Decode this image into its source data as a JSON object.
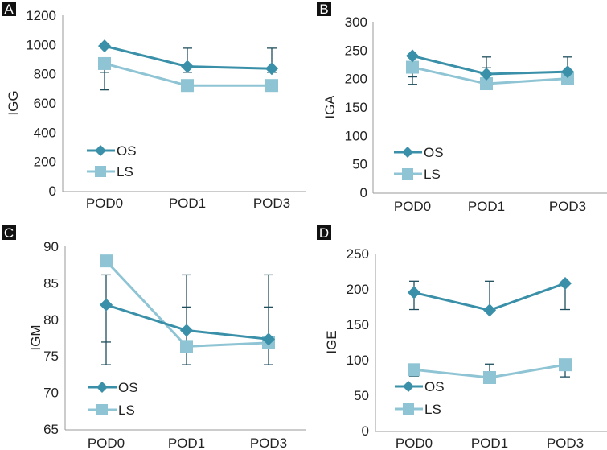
{
  "colors": {
    "OS": "#3a90a8",
    "LS": "#8ec4d4",
    "errorbar": "#1f4f5e",
    "axis": "#9a9a9a"
  },
  "chart_data": [
    {
      "panel": "A",
      "type": "line",
      "categories": [
        "POD0",
        "POD1",
        "POD3"
      ],
      "ylabel": "IGG",
      "xlabel": "",
      "ylim": [
        0,
        1200
      ],
      "yticks": [
        0,
        200,
        400,
        600,
        800,
        1000,
        1200
      ],
      "legend": "bottom-left",
      "series": [
        {
          "name": "OS",
          "marker": "diamond",
          "values": [
            990,
            850,
            835
          ]
        },
        {
          "name": "LS",
          "marker": "square",
          "values": [
            870,
            720,
            720
          ]
        }
      ],
      "error_bars": [
        {
          "category": "POD0",
          "low": 690,
          "high": 870,
          "caps": [
            690,
            810
          ]
        },
        {
          "category": "POD1",
          "low": 810,
          "high": 975,
          "caps": [
            810,
            975
          ]
        },
        {
          "category": "POD3",
          "low": 810,
          "high": 975,
          "caps": [
            810,
            975
          ]
        }
      ]
    },
    {
      "panel": "B",
      "type": "line",
      "categories": [
        "POD0",
        "POD1",
        "POD3"
      ],
      "ylabel": "IGA",
      "xlabel": "",
      "ylim": [
        0,
        300
      ],
      "yticks": [
        0,
        50,
        100,
        150,
        200,
        250,
        300
      ],
      "legend": "bottom-left",
      "series": [
        {
          "name": "OS",
          "marker": "diamond",
          "values": [
            240,
            208,
            212
          ]
        },
        {
          "name": "LS",
          "marker": "square",
          "values": [
            220,
            191,
            200
          ]
        }
      ],
      "error_bars": [
        {
          "category": "POD0",
          "low": 190,
          "high": 220,
          "caps": [
            190,
            203
          ]
        },
        {
          "category": "POD1",
          "low": 208,
          "high": 238,
          "caps": [
            219,
            238
          ]
        },
        {
          "category": "POD3",
          "low": 190,
          "high": 238,
          "caps": [
            190,
            238
          ]
        }
      ]
    },
    {
      "panel": "C",
      "type": "line",
      "categories": [
        "POD0",
        "POD1",
        "POD3"
      ],
      "ylabel": "IGM",
      "xlabel": "",
      "ylim": [
        65,
        90
      ],
      "yticks": [
        65,
        70,
        75,
        80,
        85,
        90
      ],
      "legend": "bottom-left",
      "series": [
        {
          "name": "OS",
          "marker": "diamond",
          "values": [
            82,
            78.5,
            77.3
          ]
        },
        {
          "name": "LS",
          "marker": "square",
          "values": [
            88,
            76.3,
            76.8
          ]
        }
      ],
      "error_bars": [
        {
          "category": "POD0",
          "low": 73.8,
          "high": 86.1,
          "caps": [
            73.8,
            76.9,
            86.1
          ]
        },
        {
          "category": "POD1",
          "low": 73.8,
          "high": 86.1,
          "caps": [
            73.8,
            81.7,
            86.1
          ]
        },
        {
          "category": "POD3",
          "low": 73.8,
          "high": 86.1,
          "caps": [
            73.8,
            81.7,
            86.1
          ]
        }
      ]
    },
    {
      "panel": "D",
      "type": "line",
      "categories": [
        "POD0",
        "POD1",
        "POD3"
      ],
      "ylabel": "IGE",
      "xlabel": "",
      "ylim": [
        0,
        250
      ],
      "yticks": [
        0,
        50,
        100,
        150,
        200,
        250
      ],
      "legend": "bottom-left",
      "series": [
        {
          "name": "OS",
          "marker": "diamond",
          "values": [
            195,
            170,
            208
          ]
        },
        {
          "name": "LS",
          "marker": "square",
          "values": [
            86,
            75,
            93
          ]
        }
      ],
      "error_bars": [
        {
          "category": "POD0",
          "low": 171,
          "high": 211,
          "caps": [
            171,
            211
          ]
        },
        {
          "category": "POD1",
          "low": 170,
          "high": 211,
          "caps": [
            211
          ]
        },
        {
          "category": "POD3",
          "low": 171,
          "high": 208,
          "caps": [
            171
          ]
        },
        {
          "category": "POD0",
          "low": 77,
          "high": 86,
          "caps": [
            77
          ]
        },
        {
          "category": "POD1",
          "low": 75,
          "high": 94,
          "caps": [
            94
          ]
        },
        {
          "category": "POD3",
          "low": 76,
          "high": 93,
          "caps": [
            76
          ]
        }
      ]
    }
  ]
}
